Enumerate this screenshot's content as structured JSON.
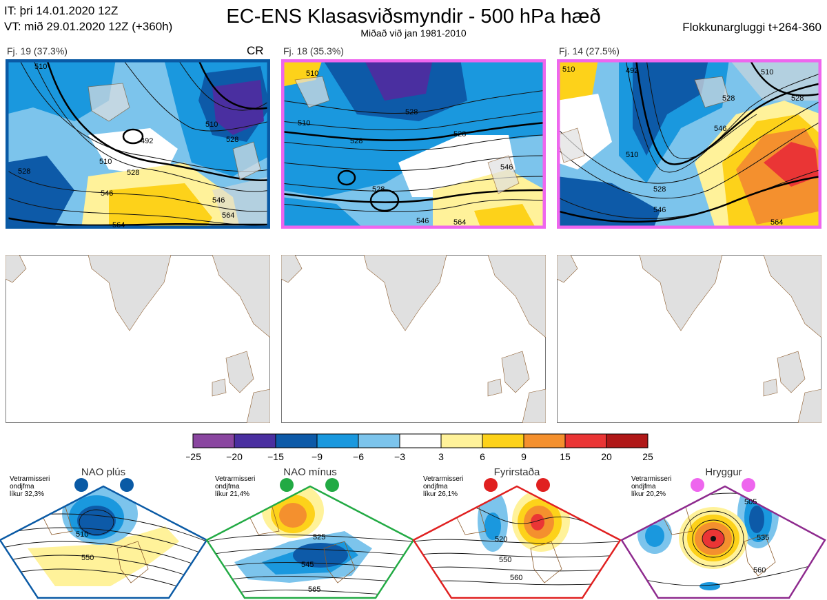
{
  "header": {
    "it_line": "IT: þri 14.01.2020 12Z",
    "vt_line": "VT: mið 29.01.2020 12Z  (+360h)",
    "title": "EC-ENS Klasasviðsmyndir - 500 hPa hæð",
    "subtitle": "Miðað við jan 1981-2010",
    "window": "Flokkunargluggi t+264-360"
  },
  "clusters": [
    {
      "label": "Fj. 19 (37.3%)",
      "tag": "CR",
      "frame_color": "#0a5aa5",
      "contours": [
        "510",
        "528",
        "546",
        "492",
        "510",
        "528",
        "546",
        "564",
        "510",
        "528",
        "564"
      ]
    },
    {
      "label": "Fj. 18 (35.3%)",
      "tag": "",
      "frame_color": "#ee66ee",
      "contours": [
        "510",
        "510",
        "528",
        "528",
        "528",
        "546",
        "546",
        "564",
        "528"
      ]
    },
    {
      "label": "Fj. 14 (27.5%)",
      "tag": "",
      "frame_color": "#ee66ee",
      "contours": [
        "510",
        "492",
        "510",
        "528",
        "546",
        "510",
        "528",
        "546",
        "528",
        "564"
      ]
    }
  ],
  "colorbar": {
    "ticks": [
      "-25",
      "-20",
      "-15",
      "-9",
      "-6",
      "-3",
      "3",
      "6",
      "9",
      "15",
      "20",
      "25"
    ],
    "colors": [
      "#8a46a0",
      "#4a2fa0",
      "#0d5aa8",
      "#1a98de",
      "#7cc4ec",
      "#ffffff",
      "#fff29a",
      "#fdd21a",
      "#f4902e",
      "#ea3535",
      "#b01818"
    ]
  },
  "regimes": [
    {
      "name": "NAO plús",
      "color": "#0a5aa5",
      "note1": "Vetrarmisseri",
      "note2": "ondjfma",
      "note3": "líkur 32,3%",
      "contours": [
        "510",
        "550"
      ]
    },
    {
      "name": "NAO mínus",
      "color": "#22aa44",
      "note1": "Vetrarmisseri",
      "note2": "ondjfma",
      "note3": "líkur 21,4%",
      "contours": [
        "525",
        "545",
        "565"
      ]
    },
    {
      "name": "Fyrirstaða",
      "color": "#e02020",
      "note1": "Vetrarmisseri",
      "note2": "ondjfma",
      "note3": "líkur 26,1%",
      "contours": [
        "520",
        "550",
        "560"
      ]
    },
    {
      "name": "Hryggur",
      "color": "#ee66ee",
      "note1": "Vetrarmisseri",
      "note2": "ondjfma",
      "note3": "líkur 20,2%",
      "contours": [
        "505",
        "535",
        "560"
      ]
    }
  ]
}
